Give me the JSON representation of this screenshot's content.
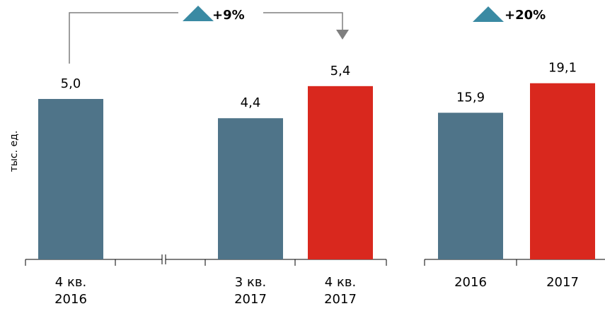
{
  "chart_data": [
    {
      "type": "bar",
      "ylabel": "тыс. ед.",
      "categories": [
        {
          "line1": "4 кв.",
          "line2": "2016"
        },
        {
          "line1": "3 кв.",
          "line2": "2017"
        },
        {
          "line1": "4 кв.",
          "line2": "2017"
        }
      ],
      "values": [
        5.0,
        4.4,
        5.4
      ],
      "value_labels": [
        "5,0",
        "4,4",
        "5,4"
      ],
      "bar_colors": [
        "#4f7489",
        "#4f7489",
        "#d9281e"
      ],
      "axis_break": "between 4 кв. 2016 and 3 кв. 2017",
      "annotation": {
        "text": "+9%",
        "from": "4 кв. 2016",
        "to": "4 кв. 2017",
        "icon": "triangle-up-icon"
      },
      "grid": false
    },
    {
      "type": "bar",
      "categories": [
        "2016",
        "2017"
      ],
      "values": [
        15.9,
        19.1
      ],
      "value_labels": [
        "15,9",
        "19,1"
      ],
      "bar_colors": [
        "#4f7489",
        "#d9281e"
      ],
      "annotation": {
        "text": "+20%",
        "icon": "triangle-up-icon"
      },
      "grid": false
    }
  ],
  "colors": {
    "base": "#4f7489",
    "highlight": "#d9281e",
    "triangle": "#3a8aa3",
    "connector": "#7f7f7f",
    "axis": "#000000",
    "text": "#000000"
  }
}
